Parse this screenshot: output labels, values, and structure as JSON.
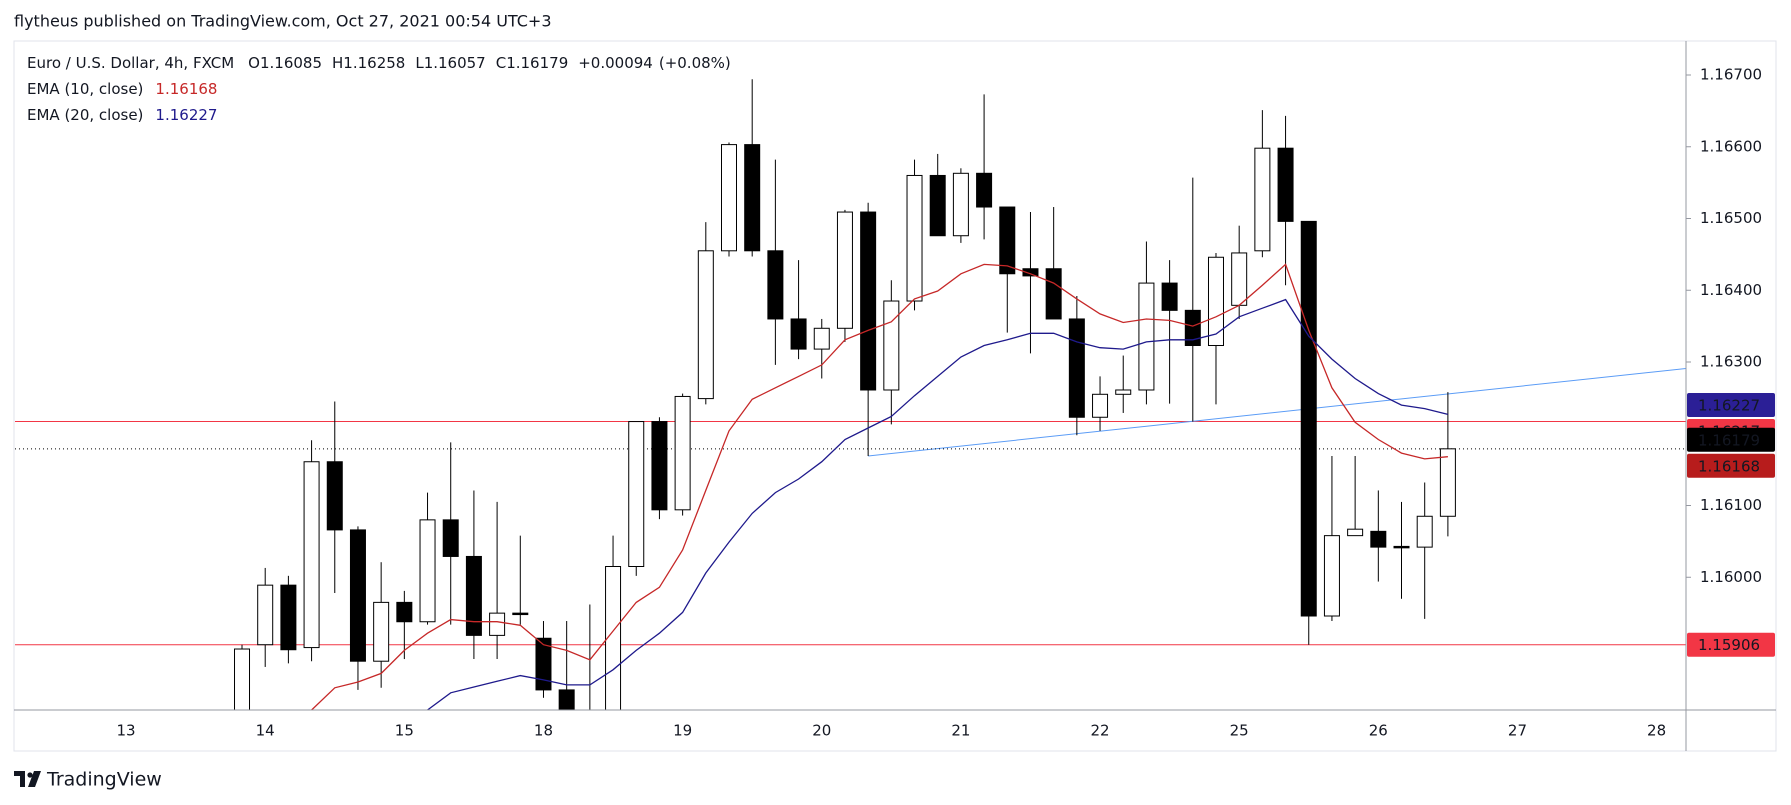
{
  "attribution": "flytheus published on TradingView.com, Oct 27, 2021 00:54 UTC+3",
  "brand": "TradingView",
  "chart_data": {
    "type": "candlestick",
    "title": "Euro / U.S. Dollar, 4h, FXCM",
    "legend_prefixes": [
      "O",
      "H",
      "L",
      "C"
    ],
    "change": {
      "value": 0.00094,
      "label": "+0.00094"
    },
    "change_percent": {
      "value": 0.08,
      "label": "(+0.08%)"
    },
    "categories": [
      null,
      null,
      null,
      null,
      "13",
      null,
      null,
      null,
      null,
      null,
      "14",
      null,
      null,
      null,
      null,
      null,
      "15",
      null,
      null,
      null,
      null,
      null,
      "18",
      null,
      null,
      null,
      null,
      null,
      "19",
      null,
      null,
      null,
      null,
      null,
      "20",
      null,
      null,
      null,
      null,
      null,
      "21",
      null,
      null,
      null,
      null,
      null,
      "22",
      null,
      null,
      null,
      null,
      null,
      "25",
      null,
      null,
      null,
      null,
      null,
      "26",
      null,
      null,
      null,
      null,
      null,
      "27",
      null,
      null,
      null,
      null,
      null,
      "28",
      null
    ],
    "open": [
      null,
      null,
      null,
      null,
      null,
      null,
      null,
      null,
      null,
      1.158,
      1.15906,
      1.15989,
      1.15902,
      1.16161,
      1.16066,
      1.15883,
      1.15965,
      1.15938,
      1.1608,
      1.16029,
      1.15919,
      1.1595,
      1.15915,
      1.15843,
      1.1579,
      1.1578,
      1.16015,
      1.16217,
      1.16094,
      1.16249,
      1.16455,
      1.16603,
      1.16455,
      1.1636,
      1.16318,
      1.16347,
      1.16509,
      1.16261,
      1.16385,
      1.1656,
      1.16476,
      1.16563,
      1.16516,
      1.1643,
      1.1643,
      1.1636,
      1.16223,
      1.16255,
      1.16261,
      1.1641,
      1.16372,
      1.16323,
      1.16379,
      1.16455,
      1.16598,
      1.16496,
      1.15946,
      1.16058,
      1.16064,
      1.16043,
      1.16042,
      1.16085,
      null,
      null,
      null,
      null,
      null,
      null,
      null,
      null,
      null,
      null
    ],
    "high": [
      null,
      null,
      null,
      null,
      null,
      null,
      null,
      null,
      null,
      1.15906,
      1.16013,
      1.16002,
      1.16191,
      1.16245,
      1.16071,
      1.16021,
      1.15981,
      1.16118,
      1.16188,
      1.16121,
      1.16105,
      1.16058,
      1.15939,
      1.15939,
      1.15962,
      1.16058,
      1.16217,
      1.16223,
      1.16256,
      1.16495,
      1.16606,
      1.16694,
      1.16582,
      1.16442,
      1.1636,
      1.16512,
      1.16522,
      1.16414,
      1.16582,
      1.1659,
      1.1657,
      1.16673,
      1.16516,
      1.16509,
      1.16516,
      1.16392,
      1.1628,
      1.16309,
      1.16468,
      1.16442,
      1.16557,
      1.16452,
      1.1649,
      1.16651,
      1.16643,
      1.16496,
      1.16169,
      1.16169,
      1.16121,
      1.16105,
      1.16132,
      1.16258,
      null,
      null,
      null,
      null,
      null,
      null,
      null,
      null,
      null,
      null
    ],
    "low": [
      null,
      null,
      null,
      null,
      null,
      null,
      null,
      null,
      null,
      1.1578,
      1.15875,
      1.1588,
      1.15883,
      1.15978,
      1.15843,
      1.15846,
      1.15886,
      1.15934,
      1.15934,
      1.15886,
      1.15886,
      1.15934,
      1.15832,
      1.1578,
      1.1575,
      1.1577,
      1.16002,
      1.16081,
      1.16086,
      1.16241,
      1.16447,
      1.16447,
      1.16296,
      1.16304,
      1.16277,
      1.16328,
      1.16169,
      1.16213,
      1.16372,
      1.16476,
      1.16466,
      1.16471,
      1.16341,
      1.16312,
      1.1636,
      1.16198,
      1.16204,
      1.16229,
      1.16241,
      1.16242,
      1.16217,
      1.16241,
      1.1636,
      1.16446,
      1.16407,
      1.15906,
      1.15939,
      1.16058,
      1.15994,
      1.1597,
      1.15942,
      1.16057,
      null,
      null,
      null,
      null,
      null,
      null,
      null,
      null,
      null,
      null
    ],
    "close": [
      null,
      null,
      null,
      null,
      null,
      null,
      null,
      null,
      null,
      1.159,
      1.15989,
      1.15899,
      1.16161,
      1.16066,
      1.15883,
      1.15965,
      1.15938,
      1.1608,
      1.16029,
      1.15919,
      1.1595,
      1.15948,
      1.15843,
      1.158,
      1.1577,
      1.16015,
      1.16217,
      1.16094,
      1.16252,
      1.16455,
      1.16603,
      1.16455,
      1.1636,
      1.16318,
      1.16347,
      1.16509,
      1.16261,
      1.16385,
      1.1656,
      1.16476,
      1.16563,
      1.16516,
      1.16423,
      1.1642,
      1.1636,
      1.16223,
      1.16255,
      1.16261,
      1.1641,
      1.16372,
      1.16323,
      1.16446,
      1.16452,
      1.16598,
      1.16496,
      1.15946,
      1.16058,
      1.16067,
      1.16042,
      1.16041,
      1.16085,
      1.16179,
      null,
      null,
      null,
      null,
      null,
      null,
      null,
      null,
      null,
      null
    ],
    "up_color": "#ffffff",
    "down_color": "#000000",
    "series": [
      {
        "name": "EMA (10, close)",
        "color": "#c62828",
        "tag_color": "#b71c1c",
        "values": [
          null,
          null,
          null,
          null,
          null,
          null,
          null,
          null,
          null,
          null,
          null,
          null,
          1.15815,
          1.15846,
          1.15854,
          1.15866,
          1.15898,
          1.15922,
          1.15941,
          1.15938,
          1.15938,
          1.15933,
          1.15906,
          1.15898,
          1.15885,
          1.15925,
          1.15965,
          1.15986,
          1.16038,
          1.16121,
          1.16204,
          1.16248,
          1.16264,
          1.1628,
          1.16296,
          1.16331,
          1.16344,
          1.16356,
          1.16388,
          1.16399,
          1.16423,
          1.16436,
          1.16434,
          1.16423,
          1.1641,
          1.16388,
          1.16367,
          1.16355,
          1.1636,
          1.16358,
          1.1635,
          1.16363,
          1.16379,
          1.16407,
          1.16436,
          1.16344,
          1.16264,
          1.16216,
          1.16192,
          1.16173,
          1.16165,
          1.16168,
          null,
          null,
          null,
          null,
          null,
          null,
          null,
          null,
          null,
          null
        ]
      },
      {
        "name": "EMA (20, close)",
        "color": "#1f1a8c",
        "tag_color": "#2b1f96",
        "values": [
          null,
          null,
          null,
          null,
          null,
          null,
          null,
          null,
          null,
          null,
          null,
          null,
          null,
          null,
          null,
          null,
          null,
          1.15815,
          1.15839,
          1.15847,
          1.15855,
          1.15863,
          1.15857,
          1.1585,
          1.1585,
          1.15871,
          1.15898,
          1.15922,
          1.15951,
          1.16006,
          1.16049,
          1.16089,
          1.16118,
          1.16137,
          1.16161,
          1.16192,
          1.16208,
          1.16224,
          1.16253,
          1.1628,
          1.16307,
          1.16323,
          1.16331,
          1.1634,
          1.1634,
          1.16328,
          1.1632,
          1.16318,
          1.16328,
          1.16331,
          1.16331,
          1.16339,
          1.16363,
          1.16375,
          1.16387,
          1.16336,
          1.16304,
          1.16277,
          1.16256,
          1.1624,
          1.16235,
          1.16227,
          null,
          null,
          null,
          null,
          null,
          null,
          null,
          null,
          null,
          null
        ]
      }
    ],
    "levels": [
      {
        "value": 1.16217,
        "color": "#f23645"
      },
      {
        "value": 1.15906,
        "color": "#f23645"
      }
    ],
    "trendline": {
      "values": [
        1.16169,
        1.16291
      ],
      "color": "#5b9cf6"
    },
    "last_price_color": "#000000",
    "ylim": [
      1.15815,
      1.16746
    ],
    "yticks": [
      {
        "value": 1.16,
        "label": "1.16000"
      },
      {
        "value": 1.161,
        "label": "1.16100"
      },
      {
        "value": 1.163,
        "label": "1.16300"
      },
      {
        "value": 1.164,
        "label": "1.16400"
      },
      {
        "value": 1.165,
        "label": "1.16500"
      },
      {
        "value": 1.166,
        "label": "1.16600"
      },
      {
        "value": 1.167,
        "label": "1.16700"
      }
    ],
    "grid": false
  }
}
